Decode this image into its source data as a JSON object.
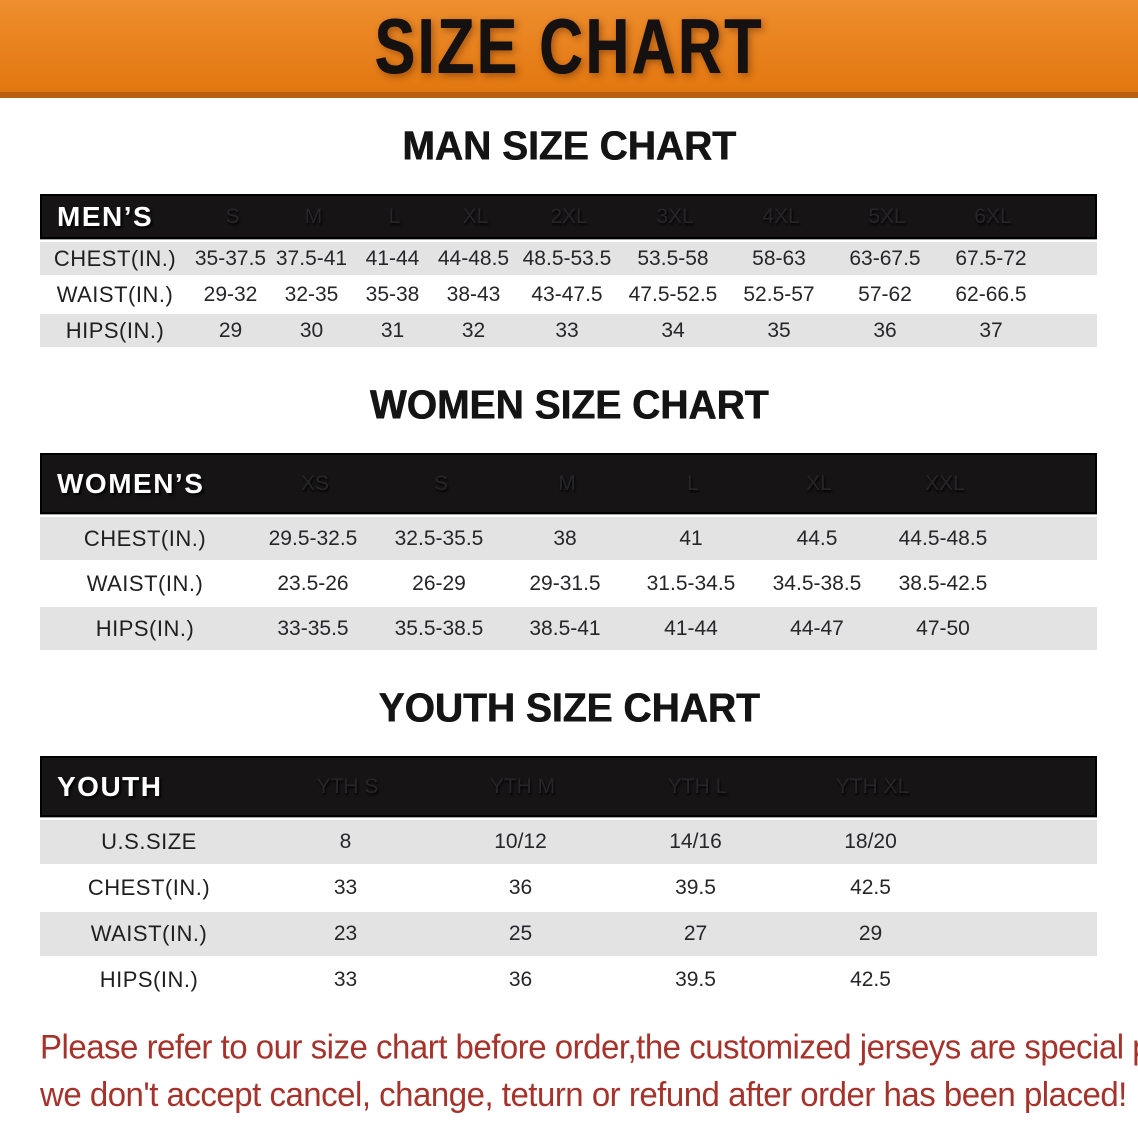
{
  "banner": {
    "title": "SIZE CHART",
    "bg_color": "#e8811c",
    "text_color": "#141110"
  },
  "sections": [
    {
      "heading": "MAN SIZE CHART",
      "table": {
        "corner_label": "MEN’S",
        "columns": [
          "S",
          "M",
          "L",
          "XL",
          "2XL",
          "3XL",
          "4XL",
          "5XL",
          "6XL"
        ],
        "rows": [
          {
            "label": "CHEST(IN.)",
            "values": [
              "35-37.5",
              "37.5-41",
              "41-44",
              "44-48.5",
              "48.5-53.5",
              "53.5-58",
              "58-63",
              "63-67.5",
              "67.5-72"
            ]
          },
          {
            "label": "WAIST(IN.)",
            "values": [
              "29-32",
              "32-35",
              "35-38",
              "38-43",
              "43-47.5",
              "47.5-52.5",
              "52.5-57",
              "57-62",
              "62-66.5"
            ]
          },
          {
            "label": "HIPS(IN.)",
            "values": [
              "29",
              "30",
              "31",
              "32",
              "33",
              "34",
              "35",
              "36",
              "37"
            ]
          }
        ]
      }
    },
    {
      "heading": "WOMEN SIZE CHART",
      "table": {
        "corner_label": "WOMEN’S",
        "columns": [
          "XS",
          "S",
          "M",
          "L",
          "XL",
          "XXL"
        ],
        "rows": [
          {
            "label": "CHEST(IN.)",
            "values": [
              "29.5-32.5",
              "32.5-35.5",
              "38",
              "41",
              "44.5",
              "44.5-48.5"
            ]
          },
          {
            "label": "WAIST(IN.)",
            "values": [
              "23.5-26",
              "26-29",
              "29-31.5",
              "31.5-34.5",
              "34.5-38.5",
              "38.5-42.5"
            ]
          },
          {
            "label": "HIPS(IN.)",
            "values": [
              "33-35.5",
              "35.5-38.5",
              "38.5-41",
              "41-44",
              "44-47",
              "47-50"
            ]
          }
        ]
      }
    },
    {
      "heading": "YOUTH SIZE CHART",
      "table": {
        "corner_label": "YOUTH",
        "columns": [
          "YTH S",
          "YTH M",
          "YTH L",
          "YTH XL"
        ],
        "rows": [
          {
            "label": "U.S.SIZE",
            "values": [
              "8",
              "10/12",
              "14/16",
              "18/20"
            ]
          },
          {
            "label": "CHEST(IN.)",
            "values": [
              "33",
              "36",
              "39.5",
              "42.5"
            ]
          },
          {
            "label": "WAIST(IN.)",
            "values": [
              "23",
              "25",
              "27",
              "29"
            ]
          },
          {
            "label": "HIPS(IN.)",
            "values": [
              "33",
              "36",
              "39.5",
              "42.5"
            ]
          }
        ]
      }
    }
  ],
  "footer_note": {
    "color": "#a6332b",
    "lines": [
      "Please refer to our size chart before order,the customized jerseys are special products,",
      "we don't accept cancel, change, teturn or refund after order has been placed!"
    ]
  }
}
